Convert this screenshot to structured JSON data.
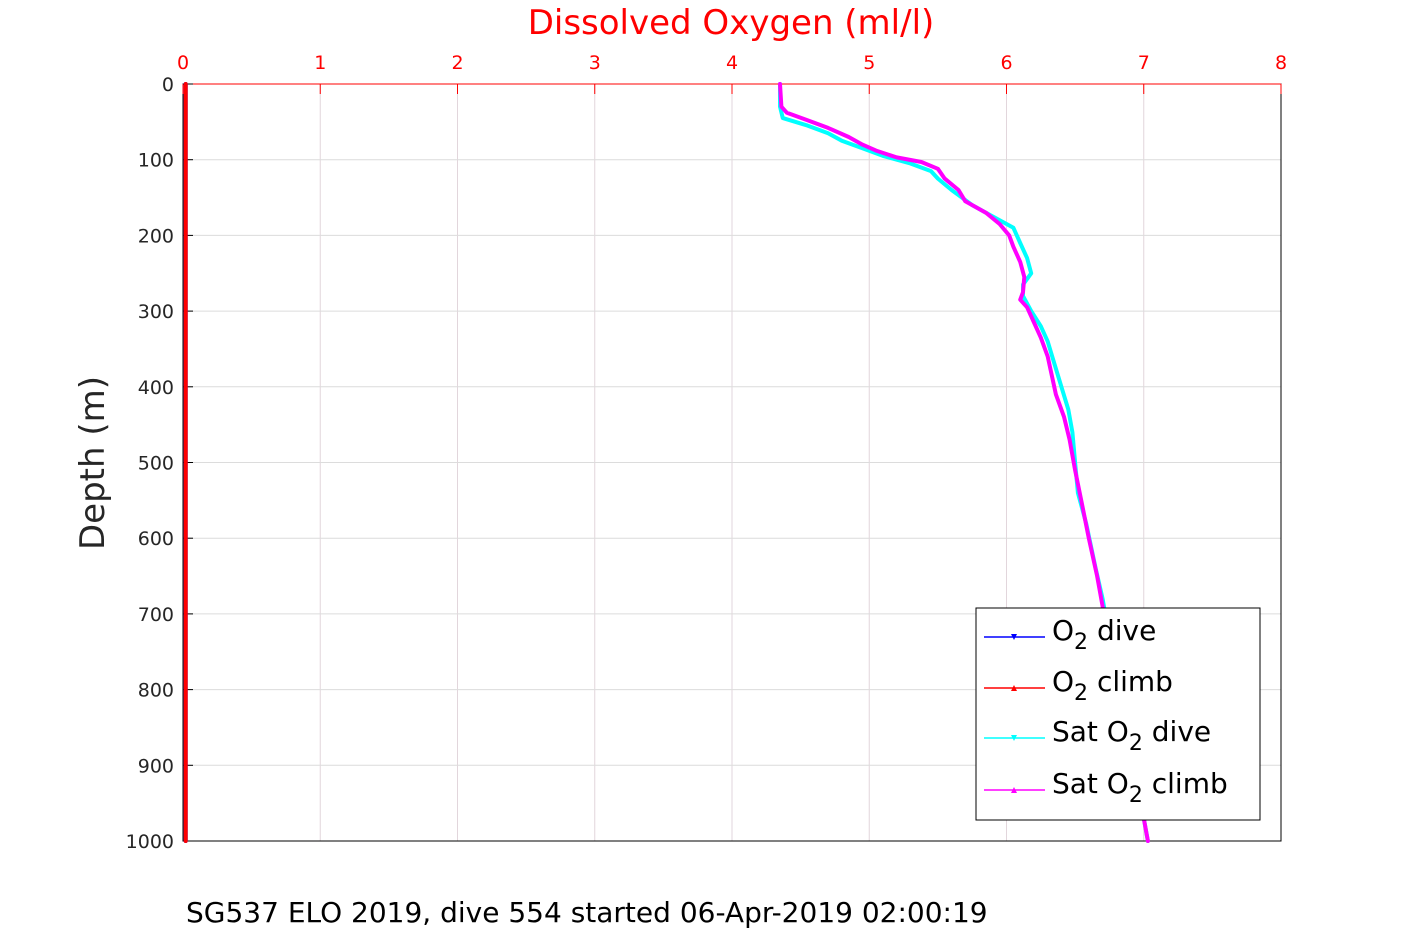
{
  "chart_data": {
    "type": "line",
    "title": "Dissolved Oxygen (ml/l)",
    "xlabel": "",
    "ylabel": "Depth (m)",
    "xlim": [
      0,
      8
    ],
    "ylim": [
      0,
      1000
    ],
    "y_reversed": true,
    "x_axis_position": "top",
    "grid": true,
    "legend_position": "bottom-right",
    "x_ticks": [
      "0",
      "1",
      "2",
      "3",
      "4",
      "5",
      "6",
      "7",
      "8"
    ],
    "y_ticks": [
      "0",
      "100",
      "200",
      "300",
      "400",
      "500",
      "600",
      "700",
      "800",
      "900",
      "1000"
    ],
    "colors": {
      "title": "#ff0000",
      "x_ticks": "#ff0000",
      "o2_dive": "#0000ff",
      "o2_climb": "#ff0000",
      "sat_dive": "#00ffff",
      "sat_climb": "#ff00ff"
    },
    "series": [
      {
        "key": "o2_dive",
        "legend_parts": [
          "O",
          "2",
          " dive"
        ],
        "color": "#0000ff",
        "marker": "triangle-down",
        "points": [
          [
            0.02,
            0
          ],
          [
            0.02,
            1000
          ]
        ]
      },
      {
        "key": "o2_climb",
        "legend_parts": [
          "O",
          "2",
          " climb"
        ],
        "color": "#ff0000",
        "marker": "triangle-up",
        "points": [
          [
            0.02,
            0
          ],
          [
            0.02,
            1000
          ]
        ]
      },
      {
        "key": "sat_dive",
        "legend_parts": [
          "Sat O",
          "2",
          " dive"
        ],
        "color": "#00ffff",
        "marker": "triangle-down",
        "points": [
          [
            4.35,
            0
          ],
          [
            4.35,
            30
          ],
          [
            4.37,
            45
          ],
          [
            4.55,
            55
          ],
          [
            4.7,
            65
          ],
          [
            4.8,
            75
          ],
          [
            4.95,
            85
          ],
          [
            5.1,
            95
          ],
          [
            5.3,
            105
          ],
          [
            5.45,
            115
          ],
          [
            5.5,
            125
          ],
          [
            5.6,
            140
          ],
          [
            5.75,
            160
          ],
          [
            5.9,
            175
          ],
          [
            6.05,
            190
          ],
          [
            6.1,
            210
          ],
          [
            6.15,
            230
          ],
          [
            6.18,
            250
          ],
          [
            6.12,
            265
          ],
          [
            6.12,
            280
          ],
          [
            6.18,
            300
          ],
          [
            6.25,
            320
          ],
          [
            6.3,
            340
          ],
          [
            6.35,
            370
          ],
          [
            6.4,
            400
          ],
          [
            6.45,
            430
          ],
          [
            6.48,
            460
          ],
          [
            6.5,
            500
          ],
          [
            6.52,
            540
          ],
          [
            6.58,
            580
          ],
          [
            6.65,
            640
          ],
          [
            6.7,
            680
          ],
          [
            6.72,
            700
          ],
          [
            6.76,
            750
          ],
          [
            6.82,
            800
          ],
          [
            6.88,
            850
          ],
          [
            6.94,
            900
          ],
          [
            6.98,
            950
          ],
          [
            7.03,
            1000
          ]
        ]
      },
      {
        "key": "sat_climb",
        "legend_parts": [
          "Sat O",
          "2",
          " climb"
        ],
        "color": "#ff00ff",
        "marker": "triangle-up",
        "points": [
          [
            4.35,
            0
          ],
          [
            4.36,
            30
          ],
          [
            4.4,
            38
          ],
          [
            4.55,
            48
          ],
          [
            4.7,
            58
          ],
          [
            4.85,
            70
          ],
          [
            4.95,
            80
          ],
          [
            5.05,
            88
          ],
          [
            5.2,
            97
          ],
          [
            5.38,
            103
          ],
          [
            5.5,
            112
          ],
          [
            5.55,
            125
          ],
          [
            5.65,
            140
          ],
          [
            5.7,
            155
          ],
          [
            5.85,
            170
          ],
          [
            5.95,
            185
          ],
          [
            6.02,
            200
          ],
          [
            6.05,
            215
          ],
          [
            6.1,
            235
          ],
          [
            6.13,
            255
          ],
          [
            6.12,
            275
          ],
          [
            6.1,
            285
          ],
          [
            6.15,
            295
          ],
          [
            6.2,
            315
          ],
          [
            6.25,
            335
          ],
          [
            6.3,
            360
          ],
          [
            6.33,
            385
          ],
          [
            6.36,
            410
          ],
          [
            6.42,
            440
          ],
          [
            6.46,
            470
          ],
          [
            6.5,
            510
          ],
          [
            6.55,
            555
          ],
          [
            6.6,
            600
          ],
          [
            6.66,
            650
          ],
          [
            6.7,
            690
          ],
          [
            6.74,
            730
          ],
          [
            6.8,
            790
          ],
          [
            6.86,
            840
          ],
          [
            6.92,
            890
          ],
          [
            6.97,
            940
          ],
          [
            7.03,
            1000
          ]
        ]
      }
    ]
  },
  "caption": "SG537 ELO 2019, dive 554 started 06-Apr-2019 02:00:19"
}
